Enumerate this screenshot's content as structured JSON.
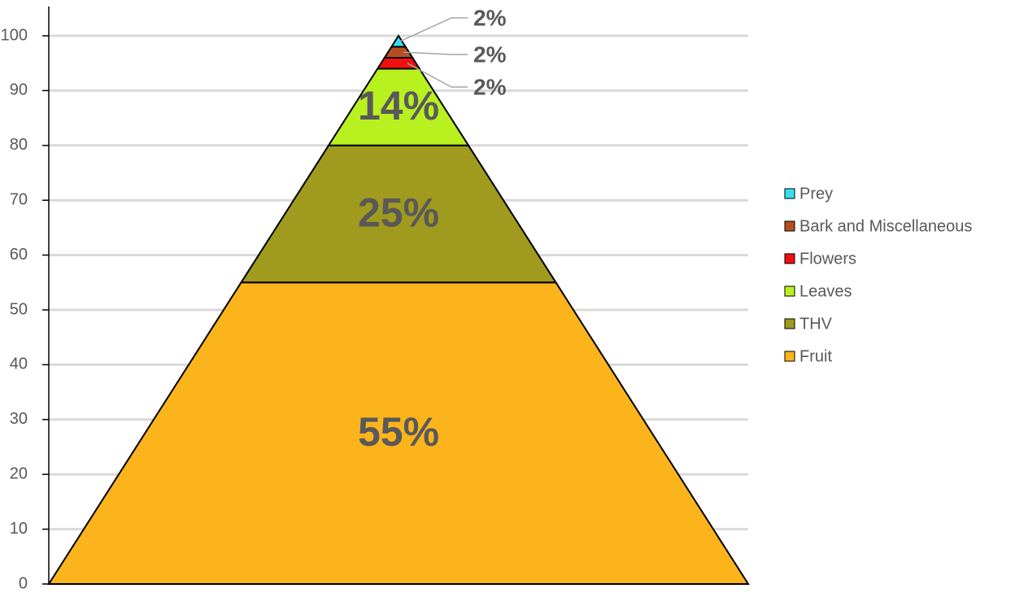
{
  "chart_data": {
    "type": "pyramid",
    "categories": [
      "Fruit",
      "THV",
      "Leaves",
      "Flowers",
      "Bark and Miscellaneous",
      "Prey"
    ],
    "values": [
      55,
      25,
      14,
      2,
      2,
      2
    ],
    "value_labels": [
      "55%",
      "25%",
      "14%",
      "2%",
      "2%",
      "2%"
    ],
    "colors": [
      "#fbb41c",
      "#a09a1e",
      "#b8f020",
      "#f01010",
      "#b5501e",
      "#33e0f0"
    ],
    "ylim": [
      0,
      100
    ],
    "yticks": [
      0,
      10,
      20,
      30,
      40,
      50,
      60,
      70,
      80,
      90,
      100
    ],
    "grid": true
  }
}
